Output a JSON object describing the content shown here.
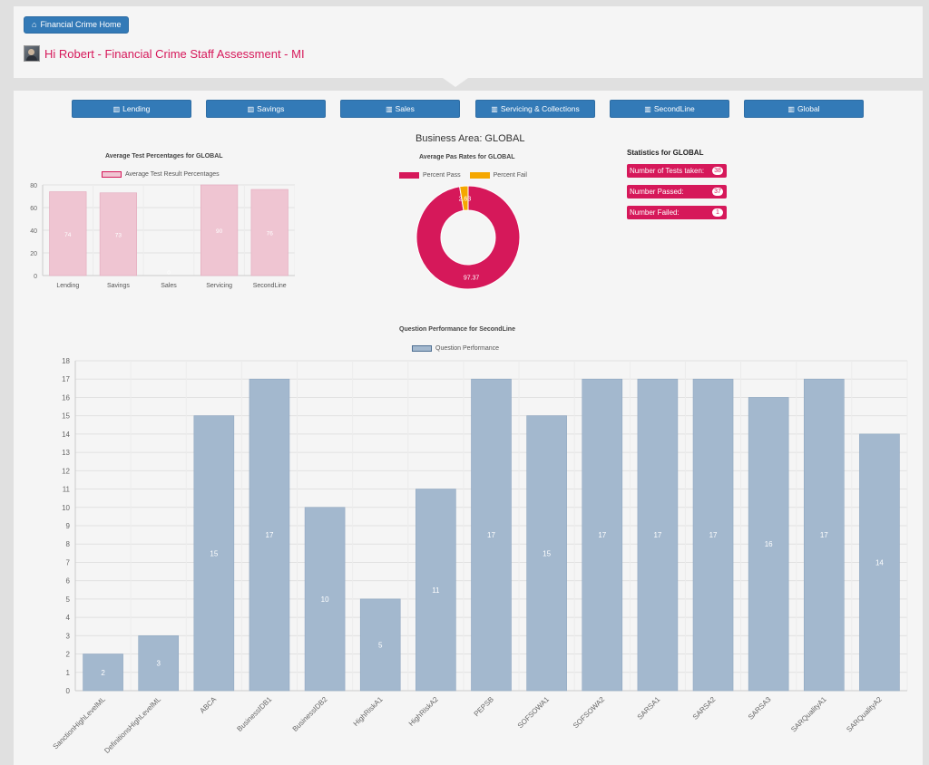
{
  "header": {
    "home_button": "Financial Crime Home",
    "greeting": "Hi Robert - Financial Crime Staff Assessment - MI"
  },
  "nav": [
    {
      "label": "Lending"
    },
    {
      "label": "Savings"
    },
    {
      "label": "Sales"
    },
    {
      "label": "Servicing & Collections"
    },
    {
      "label": "SecondLine"
    },
    {
      "label": "Global"
    }
  ],
  "business_area": "Business Area: GLOBAL",
  "colors": {
    "primary": "#337ab7",
    "accent": "#d6185a",
    "fail": "#f5a700",
    "bar_pink": "#efc5d2",
    "bar_blue": "#a3b8ce"
  },
  "statistics": {
    "title": "Statistics for GLOBAL",
    "items": [
      {
        "label": "Number of Tests taken:",
        "value": "38"
      },
      {
        "label": "Number Passed:",
        "value": "37"
      },
      {
        "label": "Number Failed:",
        "value": "1"
      }
    ]
  },
  "chart_data": [
    {
      "type": "bar",
      "title": "Average Test Percentages for GLOBAL",
      "series": [
        {
          "name": "Average Test Result Percentages",
          "values": [
            74,
            73,
            0,
            90,
            76
          ]
        }
      ],
      "categories": [
        "Lending",
        "Savings",
        "Sales",
        "Servicing",
        "SecondLine"
      ],
      "ylim": [
        0,
        80
      ],
      "yticks": [
        0,
        20,
        40,
        60,
        80
      ],
      "legend": "top",
      "grid": true
    },
    {
      "type": "pie",
      "title": "Average Pas Rates for GLOBAL",
      "labels": [
        "Percent Pass",
        "Percent Fail"
      ],
      "values": [
        97.37,
        2.63
      ],
      "legend": "top"
    },
    {
      "type": "bar",
      "title": "Question Performance for SecondLine",
      "series": [
        {
          "name": "Question Performance",
          "values": [
            2,
            3,
            15,
            17,
            10,
            5,
            11,
            17,
            15,
            17,
            17,
            17,
            16,
            17,
            14
          ]
        }
      ],
      "categories": [
        "SanctionHighLevelML",
        "DefinitionsHighLevelML",
        "ABCA",
        "BusinessIDB1",
        "BusinessIDB2",
        "HighRiskA1",
        "HighRiskA2",
        "PEPSB",
        "SOFSOWA1",
        "SOFSOWA2",
        "SARSA1",
        "SARSA2",
        "SARSA3",
        "SARQualityA1",
        "SARQualityA2"
      ],
      "ylim": [
        0,
        18
      ],
      "yticks": [
        0,
        1,
        2,
        3,
        4,
        5,
        6,
        7,
        8,
        9,
        10,
        11,
        12,
        13,
        14,
        15,
        16,
        17,
        18
      ],
      "legend": "top",
      "grid": true
    }
  ]
}
